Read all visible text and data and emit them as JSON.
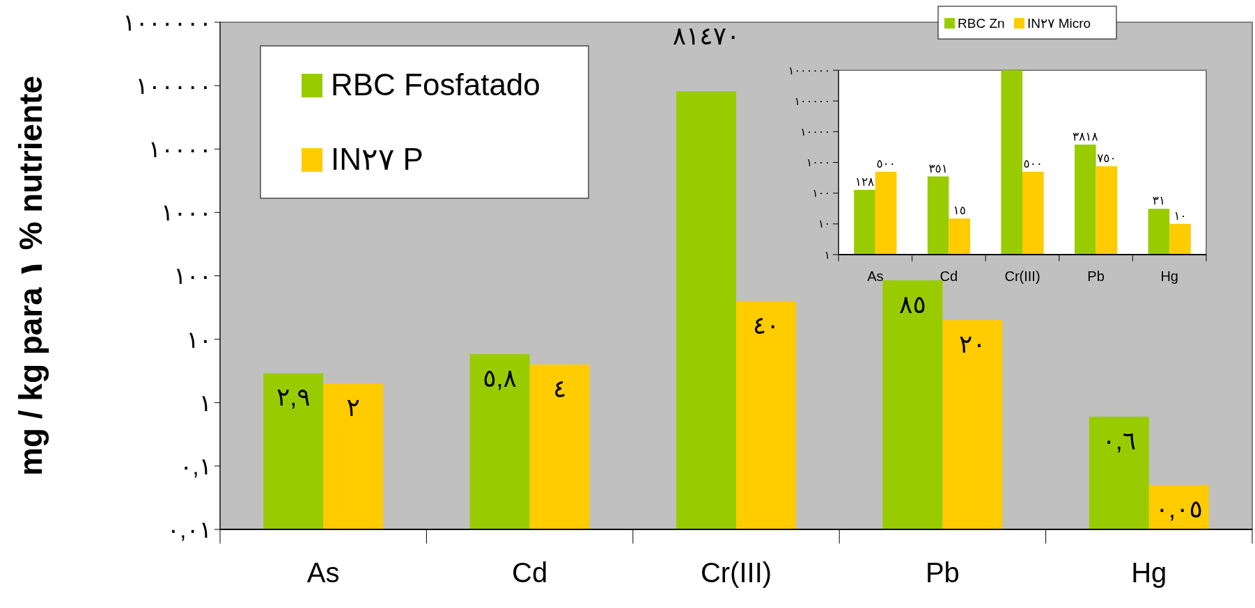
{
  "chart_data": [
    {
      "type": "bar",
      "ylabel": "mg / kg para ١ % nutriente",
      "categories": [
        "As",
        "Cd",
        "Cr(III)",
        "Pb",
        "Hg"
      ],
      "log": true,
      "ylim": [
        0.01,
        1000000
      ],
      "yticks": [
        {
          "value": 0.01,
          "label": "٠,٠١"
        },
        {
          "value": 0.1,
          "label": "٠,١"
        },
        {
          "value": 1,
          "label": "١"
        },
        {
          "value": 10,
          "label": "١٠"
        },
        {
          "value": 100,
          "label": "١٠٠"
        },
        {
          "value": 1000,
          "label": "١٠٠٠"
        },
        {
          "value": 10000,
          "label": "١٠٠٠٠"
        },
        {
          "value": 100000,
          "label": "١٠٠٠٠٠"
        },
        {
          "value": 1000000,
          "label": "١٠٠٠٠٠٠"
        }
      ],
      "series": [
        {
          "name": "RBC Fosfatado",
          "color": "#99cc00",
          "values": [
            2.9,
            5.8,
            81470,
            85,
            0.6
          ],
          "value_labels": [
            "٢,٩",
            "٥,٨",
            "٨١٤٧٠",
            "٨٥",
            "٠,٦"
          ]
        },
        {
          "name": "IN٢٧ P",
          "color": "#ffcc00",
          "values": [
            2,
            4,
            40,
            20,
            0.05
          ],
          "value_labels": [
            "٢",
            "٤",
            "٤٠",
            "٢٠",
            "٠,٠٥"
          ]
        }
      ],
      "legend": "top left",
      "grid": false
    },
    {
      "type": "bar",
      "categories": [
        "As",
        "Cd",
        "Cr(III)",
        "Pb",
        "Hg"
      ],
      "log": true,
      "ylim": [
        1,
        1000000
      ],
      "yticks": [
        {
          "value": 1,
          "label": "١"
        },
        {
          "value": 10,
          "label": "١٠"
        },
        {
          "value": 100,
          "label": "١٠٠"
        },
        {
          "value": 1000,
          "label": "١٠٠٠"
        },
        {
          "value": 10000,
          "label": "١٠٠٠٠"
        },
        {
          "value": 100000,
          "label": "١٠٠٠٠٠"
        },
        {
          "value": 1000000,
          "label": "١٠٠٠٠٠٠"
        }
      ],
      "series": [
        {
          "name": "RBC Zn",
          "color": "#99cc00",
          "values": [
            128,
            351,
            1000000,
            3818,
            31
          ],
          "value_labels": [
            "١٢٨",
            "٣٥١",
            null,
            "٣٨١٨",
            "٣١"
          ]
        },
        {
          "name": "IN٢٧ Micro",
          "color": "#ffcc00",
          "values": [
            500,
            15,
            500,
            750,
            10
          ],
          "value_labels": [
            "٥٠٠",
            "١٥",
            "٥٠٠",
            "٧٥٠",
            "١٠"
          ]
        }
      ],
      "legend": "top",
      "grid": false
    }
  ]
}
